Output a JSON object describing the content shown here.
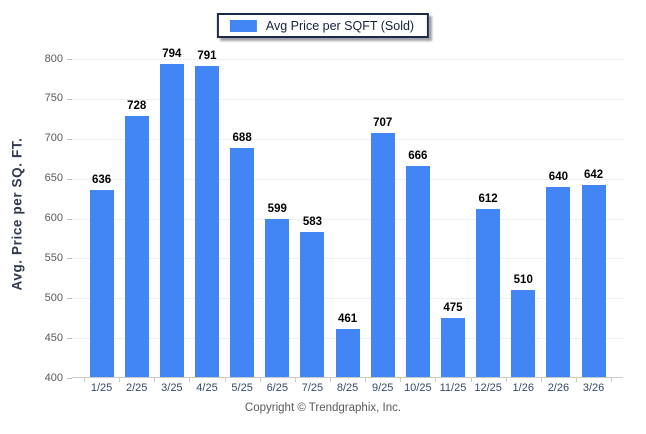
{
  "legend": {
    "label": "Avg Price per SQFT (Sold)"
  },
  "footer": {
    "copyright": "Copyright © Trendgraphix, Inc."
  },
  "colors": {
    "bar": "#4285f4",
    "grid": "#efefef",
    "axis": "#c9c9c9",
    "y_tick_label": "#595959",
    "x_tick_label": "#35496b",
    "value_label": "#000000",
    "legend_border": "#1c2b4a"
  },
  "chart_data": {
    "type": "bar",
    "title": "",
    "xlabel": "",
    "ylabel": "Avg. Price per SQ. FT.",
    "legend": [
      "Avg Price per SQFT (Sold)"
    ],
    "legend_position": "top-center",
    "categories": [
      "1/25",
      "2/25",
      "3/25",
      "4/25",
      "5/25",
      "6/25",
      "7/25",
      "8/25",
      "9/25",
      "10/25",
      "11/25",
      "12/25",
      "1/26",
      "2/26",
      "3/26"
    ],
    "values": [
      636,
      728,
      794,
      791,
      688,
      599,
      583,
      461,
      707,
      666,
      475,
      612,
      510,
      640,
      642
    ],
    "ylim": [
      400,
      800
    ],
    "yticks": [
      400,
      450,
      500,
      550,
      600,
      650,
      700,
      750,
      800
    ],
    "grid": "horizontal",
    "value_labels": true
  }
}
